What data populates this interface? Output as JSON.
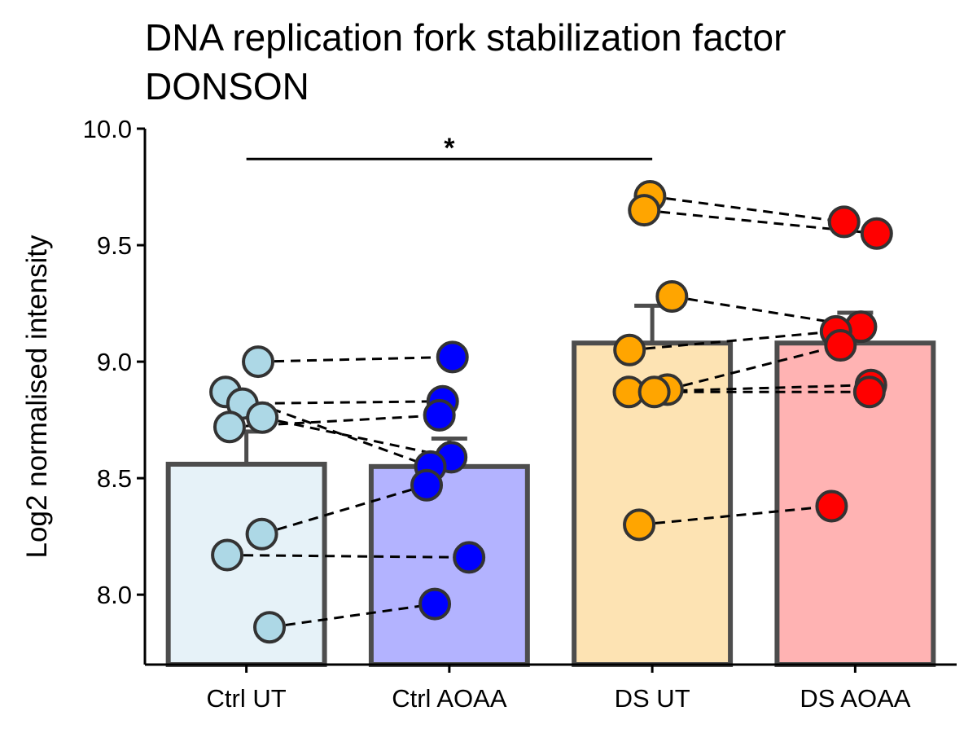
{
  "chart_data": {
    "type": "bar",
    "title_lines": [
      "DNA replication fork stabilization factor",
      "DONSON"
    ],
    "xlabel": "",
    "ylabel": "Log2 normalised intensity",
    "ylim": [
      7.7,
      10.0
    ],
    "yticks": [
      8.0,
      8.5,
      9.0,
      9.5,
      10.0
    ],
    "ytick_labels": [
      "8.0",
      "8.5",
      "9.0",
      "9.5",
      "10.0"
    ],
    "grid": false,
    "legend": "none",
    "categories": [
      "Ctrl UT",
      "Ctrl AOAA",
      "DS UT",
      "DS AOAA"
    ],
    "bars": [
      {
        "category": "Ctrl UT",
        "mean": 8.56,
        "error_upper": 8.7,
        "fill": "#e6f2f8",
        "point_color": "#add8e6"
      },
      {
        "category": "Ctrl AOAA",
        "mean": 8.55,
        "error_upper": 8.67,
        "fill": "#b3b3ff",
        "point_color": "#0000ff"
      },
      {
        "category": "DS UT",
        "mean": 9.08,
        "error_upper": 9.24,
        "fill": "#fde3b3",
        "point_color": "#ffa500"
      },
      {
        "category": "DS AOAA",
        "mean": 9.08,
        "error_upper": 9.21,
        "fill": "#ffb3b3",
        "point_color": "#ff0000"
      }
    ],
    "points": {
      "Ctrl UT": [
        9.0,
        8.87,
        8.82,
        8.76,
        8.72,
        8.26,
        8.17,
        7.86
      ],
      "Ctrl AOAA": [
        9.02,
        8.83,
        8.77,
        8.59,
        8.55,
        8.47,
        8.16,
        7.96
      ],
      "DS UT": [
        9.71,
        9.65,
        9.28,
        9.05,
        8.88,
        8.87,
        8.87,
        8.3
      ],
      "DS AOAA": [
        9.6,
        9.55,
        9.15,
        9.13,
        9.07,
        8.9,
        8.87,
        8.38
      ]
    },
    "pairs": [
      {
        "from": "Ctrl UT",
        "to": "Ctrl AOAA",
        "links": [
          [
            9.0,
            9.02
          ],
          [
            8.87,
            8.55
          ],
          [
            8.82,
            8.83
          ],
          [
            8.76,
            8.59
          ],
          [
            8.72,
            8.77
          ],
          [
            8.26,
            8.47
          ],
          [
            8.17,
            8.16
          ],
          [
            7.86,
            7.96
          ]
        ]
      },
      {
        "from": "DS UT",
        "to": "DS AOAA",
        "links": [
          [
            9.71,
            9.6
          ],
          [
            9.65,
            9.55
          ],
          [
            9.28,
            9.15
          ],
          [
            9.05,
            9.13
          ],
          [
            8.88,
            9.07
          ],
          [
            8.87,
            8.87
          ],
          [
            8.87,
            8.9
          ],
          [
            8.3,
            8.38
          ]
        ]
      }
    ],
    "significance": [
      {
        "from": "Ctrl UT",
        "to": "DS UT",
        "y": 9.87,
        "label": "*"
      }
    ],
    "colors": {
      "bar_outline": "#4d4d4d",
      "point_outline": "#333333",
      "axis": "#000000",
      "pair_line": "#000000"
    }
  }
}
